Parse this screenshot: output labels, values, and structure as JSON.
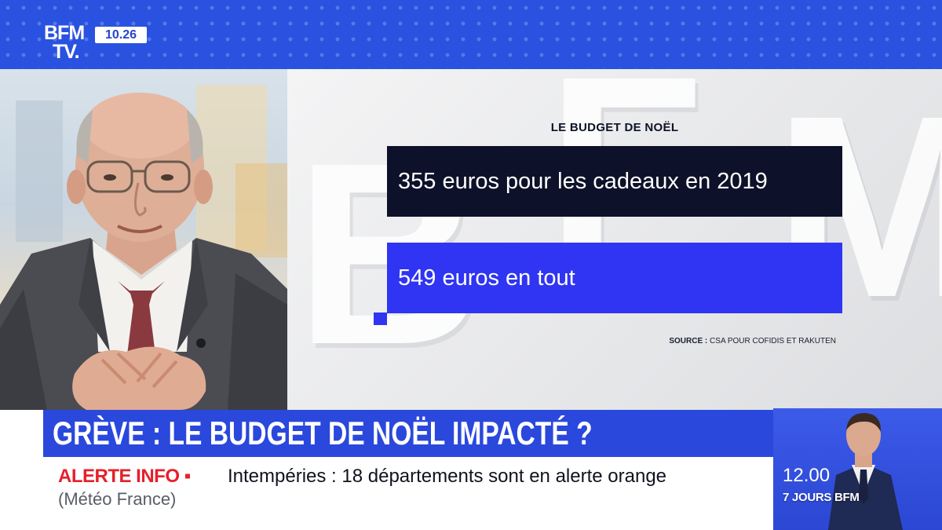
{
  "channel": {
    "logo_line1": "BFM",
    "logo_line2": "TV.",
    "clock": "10.26"
  },
  "graphic": {
    "title": "LE BUDGET DE NOËL",
    "bars": [
      {
        "text": "355 euros pour les cadeaux en 2019",
        "color": "#0d1129"
      },
      {
        "text": "549 euros en tout",
        "color": "#2f35f2"
      }
    ],
    "source_label": "SOURCE :",
    "source_text": "CSA POUR COFIDIS ET RAKUTEN"
  },
  "headline": "GRÈVE : LE BUDGET DE NOËL IMPACTÉ ?",
  "ticker": {
    "alert_label": "ALERTE INFO ▪",
    "text": "Intempéries : 18 départements sont en alerte orange",
    "subtext": "(Météo France)"
  },
  "promo": {
    "time": "12.00",
    "show": "7 JOURS BFM"
  },
  "colors": {
    "brand_blue": "#2a48dc",
    "alert_red": "#e5202b",
    "navy": "#0d1129"
  }
}
